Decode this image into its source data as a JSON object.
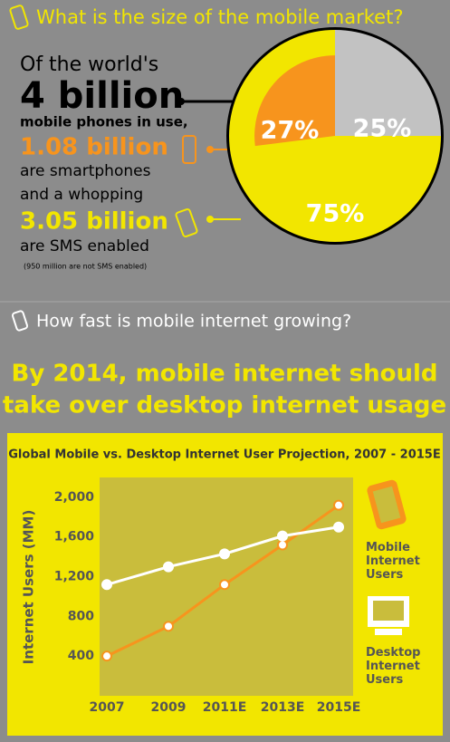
{
  "section1": {
    "heading": "What is the size of the mobile market?",
    "lines": [
      "Of the world's",
      "4 billion",
      "mobile phones in use,",
      "1.08 billion",
      "are smartphones",
      "and a whopping",
      "3.05 billion",
      "are SMS enabled",
      "(950 million are not SMS enabled)"
    ]
  },
  "section2": {
    "heading": "How fast is mobile internet growing?",
    "headline": [
      "By 2014, mobile internet should",
      "take over desktop internet usage"
    ]
  },
  "chart_data": [
    {
      "type": "pie",
      "values": [
        25,
        75,
        27
      ],
      "value_labels": [
        "25%",
        "75%",
        "27%"
      ],
      "colors": [
        "#c2c2c2",
        "#f2e600",
        "#f7941d"
      ]
    },
    {
      "type": "line",
      "title": "Global Mobile vs. Desktop Internet User Projection, 2007 - 2015E",
      "y_label": "Internet Users (MM)",
      "categories": [
        "2007",
        "2009",
        "2011E",
        "2013E",
        "2015E"
      ],
      "series": [
        {
          "name": "Mobile Internet Users",
          "color": "#f7941d",
          "values": [
            400,
            700,
            1120,
            1520,
            1920
          ]
        },
        {
          "name": "Desktop Internet Users",
          "color": "#ffffff",
          "values": [
            1120,
            1300,
            1430,
            1610,
            1700
          ]
        }
      ],
      "ylim": [
        0,
        2200
      ],
      "yticks": [
        400,
        800,
        {
          "value": 1200,
          "label": "1,200"
        },
        {
          "value": 1600,
          "label": "1,600"
        },
        {
          "value": 2000,
          "label": "2,000"
        }
      ],
      "grid": false
    }
  ]
}
